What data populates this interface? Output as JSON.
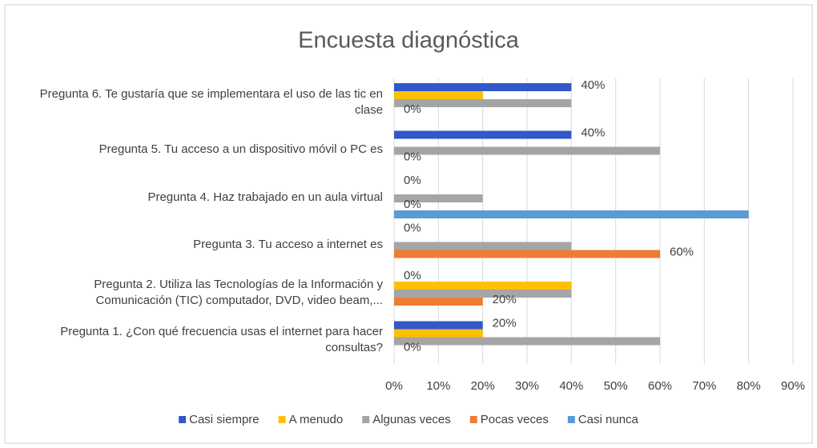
{
  "chart_data": {
    "type": "hbar",
    "title": "Encuesta diagnóstica",
    "categories": [
      "Pregunta 1. ¿Con qué frecuencia usas el internet para hacer consultas?",
      "Pregunta 2. Utiliza las Tecnologías de la Información y Comunicación (TIC) computador, DVD, video beam,...",
      "Pregunta 3. Tu acceso a internet es",
      "Pregunta 4. Haz trabajado en un aula virtual",
      "Pregunta 5. Tu acceso a un dispositivo móvil o PC es",
      "Pregunta 6. Te gustaría que se implementara el uso de las tic en clase"
    ],
    "series": [
      {
        "name": "Casi siempre",
        "color": "#3158c9",
        "values": [
          20,
          0,
          0,
          0,
          40,
          40
        ],
        "value_labels": [
          "20%",
          "0%",
          "0%",
          "0%",
          "40%",
          "40%"
        ]
      },
      {
        "name": "A menudo",
        "color": "#ffc000",
        "values": [
          20,
          40,
          0,
          0,
          0,
          20
        ]
      },
      {
        "name": "Algunas veces",
        "color": "#a5a5a5",
        "values": [
          60,
          40,
          40,
          20,
          60,
          40
        ]
      },
      {
        "name": "Pocas veces",
        "color": "#ed7d31",
        "values": [
          0,
          20,
          60,
          0,
          0,
          0
        ],
        "value_labels": [
          "0%",
          "20%",
          "60%",
          "0%",
          "0%",
          "0%"
        ]
      },
      {
        "name": "Casi nunca",
        "color": "#5b9bd5",
        "values": [
          0,
          0,
          0,
          80,
          0,
          0
        ]
      }
    ],
    "xlim": [
      0,
      90
    ],
    "xticks": [
      {
        "value": 0,
        "label": "0%"
      },
      {
        "value": 10,
        "label": "10%"
      },
      {
        "value": 20,
        "label": "20%"
      },
      {
        "value": 30,
        "label": "30%"
      },
      {
        "value": 40,
        "label": "40%"
      },
      {
        "value": 50,
        "label": "50%"
      },
      {
        "value": 60,
        "label": "60%"
      },
      {
        "value": 70,
        "label": "70%"
      },
      {
        "value": 80,
        "label": "80%"
      },
      {
        "value": 90,
        "label": "90%"
      }
    ],
    "grid": true,
    "legend": "bottom"
  }
}
